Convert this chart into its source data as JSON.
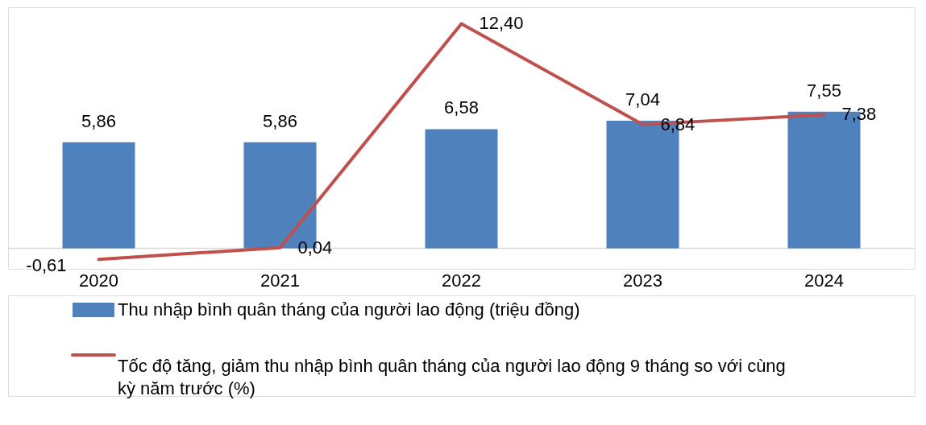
{
  "chart_data": {
    "type": "bar",
    "categories": [
      "2020",
      "2021",
      "2022",
      "2023",
      "2024"
    ],
    "series": [
      {
        "name": "Thu nhập bình quân tháng của người lao động (triệu đồng)",
        "color": "#4f81bd",
        "values": [
          5.86,
          5.86,
          6.58,
          7.04,
          7.55
        ],
        "value_labels": [
          "5,86",
          "5,86",
          "6,58",
          "7,04",
          "7,55"
        ]
      },
      {
        "name": "Tốc độ tăng, giảm thu nhập bình quân tháng của người lao động 9 tháng so với cùng kỳ năm trước (%)",
        "type": "line",
        "color": "#c0504d",
        "values": [
          -0.61,
          0.04,
          12.4,
          6.84,
          7.38
        ],
        "value_labels": [
          "-0,61",
          "0,04",
          "12,40",
          "6,84",
          "7,38"
        ]
      }
    ],
    "tick_labels": "x",
    "legend": "bottom",
    "line_style": "solid"
  }
}
